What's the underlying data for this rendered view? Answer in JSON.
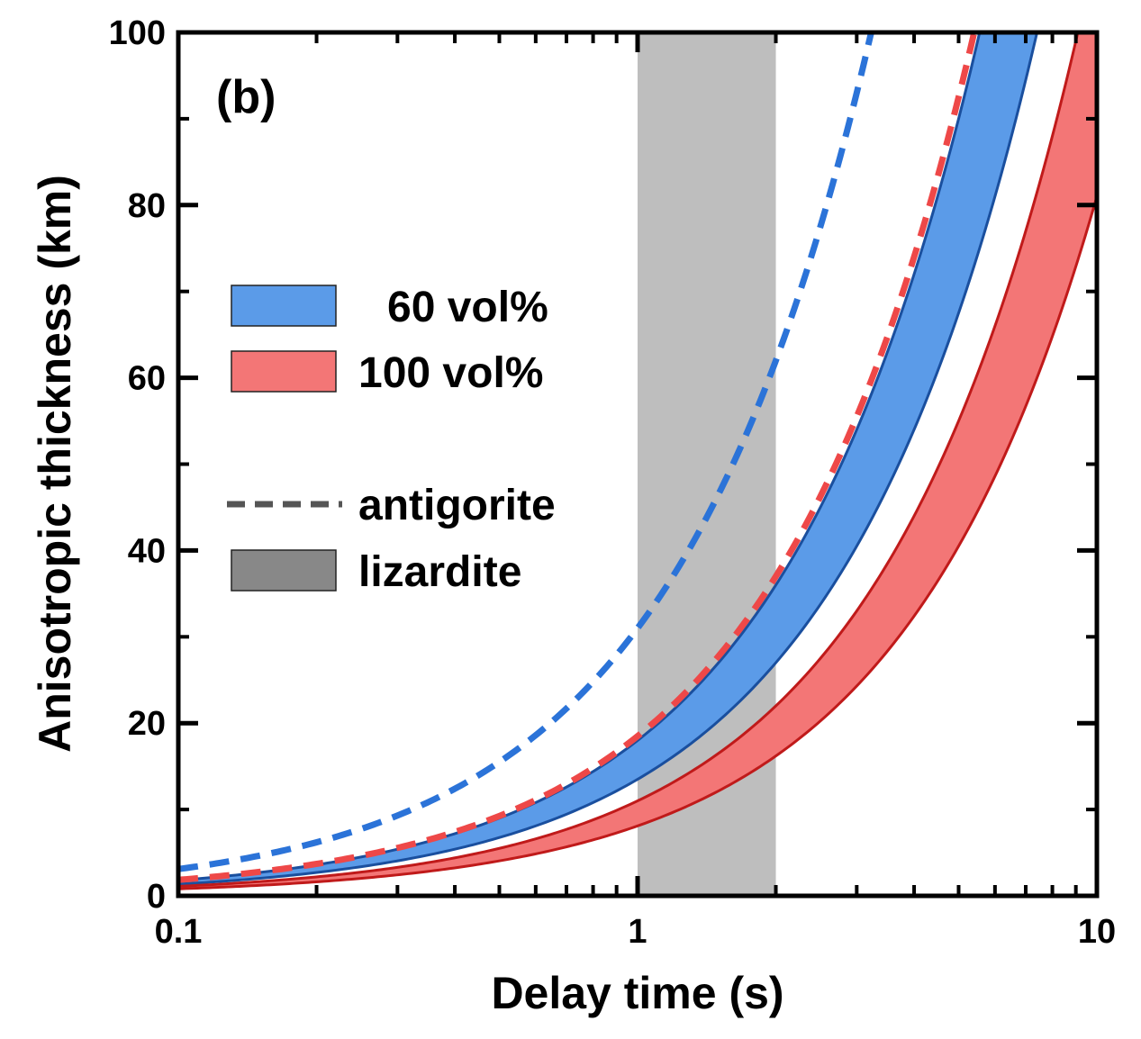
{
  "chart_data": {
    "type": "line",
    "panel_label": "(b)",
    "xlabel": "Delay time (s)",
    "ylabel": "Anisotropic thickness (km)",
    "x_scale": "log",
    "xlim": [
      0.1,
      10
    ],
    "ylim": [
      0,
      100
    ],
    "x_ticks": [
      {
        "value": 0.1,
        "label": "0.1"
      },
      {
        "value": 1,
        "label": "1"
      },
      {
        "value": 10,
        "label": "10"
      }
    ],
    "y_ticks": [
      {
        "value": 0,
        "label": "0"
      },
      {
        "value": 20,
        "label": "20"
      },
      {
        "value": 40,
        "label": "40"
      },
      {
        "value": 60,
        "label": "60"
      },
      {
        "value": 80,
        "label": "80"
      },
      {
        "value": 100,
        "label": "100"
      }
    ],
    "shaded_region": {
      "x_range": [
        1,
        2
      ],
      "color": "#bebebe"
    },
    "series": [
      {
        "name": "60 vol%",
        "kind": "band",
        "color_fill": "#5b9be8",
        "color_line": "#1a4f9e",
        "lower_km_per_s": 13.5,
        "upper_km_per_s": 18.0
      },
      {
        "name": "100 vol%",
        "kind": "band",
        "color_fill": "#f37676",
        "color_line": "#c01a1a",
        "lower_km_per_s": 8.1,
        "upper_km_per_s": 11.0
      },
      {
        "kind": "dashed",
        "color": "#2b73d8",
        "km_per_s": 31.0
      },
      {
        "kind": "dashed",
        "color": "#ee4848",
        "km_per_s": 18.5
      }
    ],
    "legend": {
      "placement": "left-center",
      "entries": [
        {
          "label": "60 vol%",
          "swatch": "fill",
          "color": "#5b9be8"
        },
        {
          "label": "100 vol%",
          "swatch": "fill",
          "color": "#f37676"
        },
        {
          "label": "antigorite",
          "swatch": "dashed",
          "color": "#555555"
        },
        {
          "label": "lizardite",
          "swatch": "fill",
          "color": "#888888"
        }
      ]
    }
  }
}
